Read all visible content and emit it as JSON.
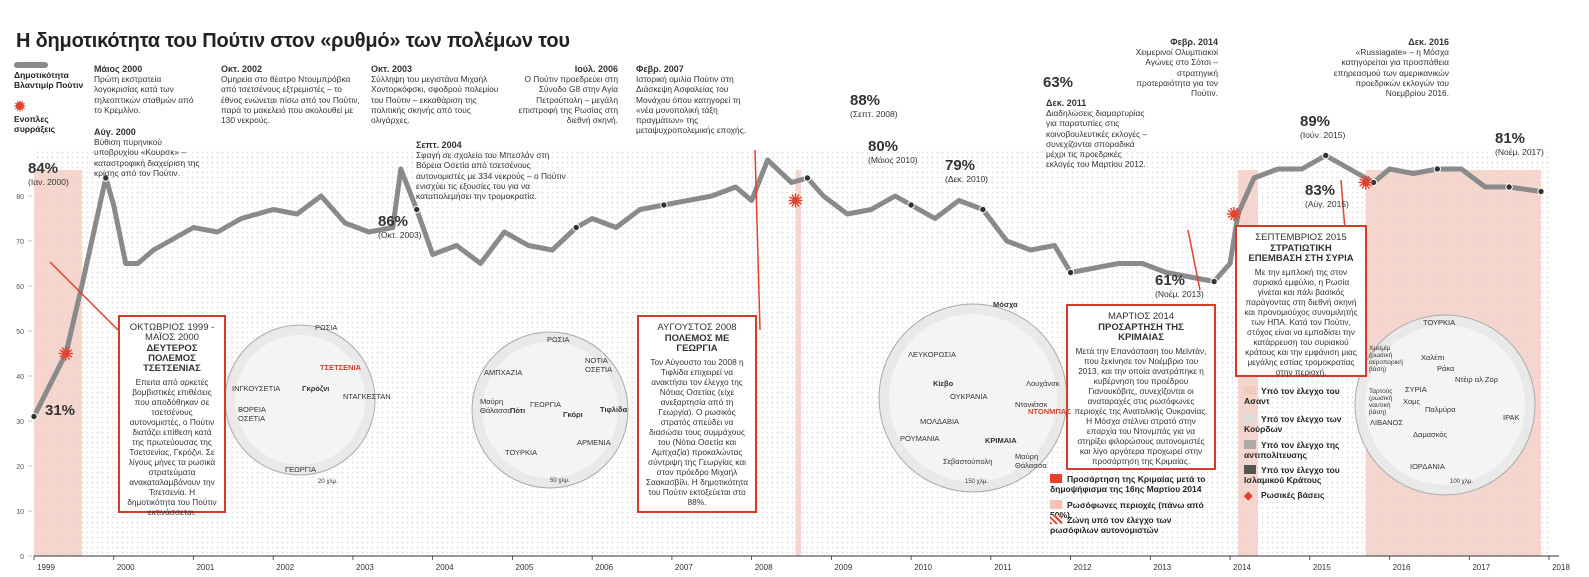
{
  "title": "Η δημοτικότητα του Πούτιν στον «ρυθμό» των πολέμων του",
  "legend": {
    "line_label": "Δημοτικότητα Βλαντιμίρ Πούτιν",
    "star_label": "Ενοπλες συρράξεις"
  },
  "colors": {
    "line": "#8a8a8a",
    "accent": "#e2412b",
    "war_band": "#f6d6cc",
    "grid_dot": "#d7d7d7"
  },
  "chart_data": {
    "type": "line",
    "title": "Η δημοτικότητα του Πούτιν στον «ρυθμό» των πολέμων του",
    "xlabel": "",
    "ylabel": "",
    "ylim": [
      0,
      90
    ],
    "xlim": [
      1999.0,
      2018.0
    ],
    "yticks": [
      0,
      10,
      20,
      30,
      40,
      50,
      60,
      70,
      80
    ],
    "years": [
      "1999",
      "2000",
      "2001",
      "2002",
      "2003",
      "2004",
      "2005",
      "2006",
      "2007",
      "2008",
      "2009",
      "2010",
      "2011",
      "2012",
      "2013",
      "2014",
      "2015",
      "2016",
      "2017",
      "2018"
    ],
    "series": [
      {
        "name": "Δημοτικότητα Βλαντιμίρ Πούτιν",
        "x": [
          1999.0,
          1999.4,
          1999.6,
          1999.75,
          1999.9,
          2000.0,
          2000.15,
          2000.3,
          2000.5,
          2000.7,
          2001.0,
          2001.3,
          2001.6,
          2002.0,
          2002.3,
          2002.6,
          2002.9,
          2003.2,
          2003.5,
          2003.6,
          2003.8,
          2004.0,
          2004.3,
          2004.6,
          2004.9,
          2005.2,
          2005.5,
          2005.8,
          2006.0,
          2006.3,
          2006.6,
          2006.9,
          2007.2,
          2007.5,
          2007.8,
          2008.0,
          2008.2,
          2008.5,
          2008.7,
          2008.9,
          2009.2,
          2009.5,
          2009.8,
          2010.0,
          2010.3,
          2010.6,
          2010.9,
          2011.2,
          2011.5,
          2011.8,
          2012.0,
          2012.3,
          2012.6,
          2012.9,
          2013.2,
          2013.5,
          2013.8,
          2014.0,
          2014.1,
          2014.3,
          2014.6,
          2014.9,
          2015.2,
          2015.5,
          2015.8,
          2016.0,
          2016.3,
          2016.6,
          2016.9,
          2017.2,
          2017.5,
          2017.9
        ],
        "values": [
          31,
          45,
          60,
          72,
          84,
          78,
          65,
          65,
          68,
          70,
          73,
          72,
          75,
          77,
          76,
          80,
          74,
          72,
          73,
          86,
          77,
          67,
          69,
          65,
          72,
          69,
          68,
          73,
          75,
          73,
          77,
          78,
          79,
          80,
          82,
          79,
          88,
          83,
          84,
          80,
          76,
          77,
          80,
          78,
          75,
          79,
          77,
          70,
          68,
          69,
          63,
          64,
          65,
          65,
          63,
          62,
          61,
          65,
          76,
          84,
          86,
          86,
          89,
          86,
          83,
          86,
          85,
          86,
          86,
          82,
          82,
          81
        ]
      }
    ],
    "peaks": [
      {
        "value": "84%",
        "date": "(Ιαν. 2000)"
      },
      {
        "value": "31%",
        "date": ""
      },
      {
        "value": "86%",
        "date": "(Οκτ. 2003)"
      },
      {
        "value": "88%",
        "date": "(Σεπτ. 2008)"
      },
      {
        "value": "80%",
        "date": "(Μάιος 2010)"
      },
      {
        "value": "79%",
        "date": "(Δεκ. 2010)"
      },
      {
        "value": "63%",
        "date": ""
      },
      {
        "value": "61%",
        "date": "(Νοέμ. 2013)"
      },
      {
        "value": "89%",
        "date": "(Ιούν. 2015)"
      },
      {
        "value": "83%",
        "date": "(Αύγ. 2015)"
      },
      {
        "value": "81%",
        "date": "(Νοέμ. 2017)"
      }
    ]
  },
  "annotations": [
    {
      "date": "Μάιος 2000",
      "text": "Πρώτη εκστρατεία λογοκρισίας κατά των τηλεοπτικών σταθμών από το Κρεμλίνο."
    },
    {
      "date": "Αύγ. 2000",
      "text": "Βύθιση πυρηνικού υποβρυχίου «Κουρσκ» – καταστροφική διαχείριση της κρίσης από τον Πούτιν."
    },
    {
      "date": "Οκτ. 2002",
      "text": "Ομηρεία στο θέατρο Ντουμπρόβκα από τσετσένους εξτρεμιστές – το έθνος ενώνεται πίσω από τον Πούτιν, παρά το μακελειό που ακολουθεί με 130 νεκρούς."
    },
    {
      "date": "Οκτ. 2003",
      "text": "Σύλληψη του μεγιστάνα Μιχαήλ Χοντορκόφσκι, σφοδρού πολεμίου του Πούτιν – εκκαθάριση της πολιτικής σκηνής από τους ολιγάρχες."
    },
    {
      "date": "Σεπτ. 2004",
      "text": "Σφαγή σε σχολείο του Μπεσλάν στη Βόρεια Οσετία από τσετσένους αυτονομιστές με 334 νεκρούς – ο Πούτιν ενισχύει τις εξουσίες του για να καταπολεμήσει την τρομοκρατία."
    },
    {
      "date": "Ιούλ. 2006",
      "text": "Ο Πούτιν προεδρεύει στη Σύνοδο G8 στην Αγία Πετρούπολη – μεγάλη επιστροφή της Ρωσίας στη διεθνή σκηνή."
    },
    {
      "date": "Φεβρ. 2007",
      "text": "Ιστορική ομιλία Πούτιν στη Διάσκεψη Ασφαλείας του Μονάχου όπου κατηγορεί τη «νέα μονοπολική τάξη πραγμάτων» της μεταψυχροπολεμικής εποχής."
    },
    {
      "date": "Δεκ. 2011",
      "text": "Διαδηλώσεις διαμαρτυρίας για παρατυπίες στις κοινοβουλευτικές εκλογές – συνεχίζονται σποραδικά μέχρι τις προεδρικές εκλογές του Μαρτίου 2012."
    },
    {
      "date": "Φεβρ. 2014",
      "text": "Χειμερινοί Ολυμπιακοί Αγώνες στο Σότσι – στρατηγική προτεραιότητα για τον Πούτιν."
    },
    {
      "date": "Δεκ. 2016",
      "text": "«Russiagate» – η Μόσχα κατηγορείται για προσπάθεια επηρεασμού των αμερικανικών προεδρικών εκλογών του Νοεμβρίου 2016."
    }
  ],
  "boxes": [
    {
      "date": "ΟΚΤΩΒΡΙΟΣ 1999 - ΜΑΪΟΣ 2000",
      "heading": "ΔΕΥΤΕΡΟΣ ΠΟΛΕΜΟΣ ΤΣΕΤΣΕΝΙΑΣ",
      "body": "Επειτα από αρκετές βομβιστικές επιθέσεις που αποδόθηκαν σε τσετσένους αυτονομιστές, ο Πούτιν διατάζει επίθεση κατά της πρωτεύουσας της Τσετσενίας, Γκρόζνι. Σε λίγους μήνες τα ρωσικά στρατεύματα ανακαταλαμβάνουν την Τσετσενία. Η δημοτικότητα του Πούτιν εκτινάσσεται."
    },
    {
      "date": "ΑΥΓΟΥΣΤΟΣ 2008",
      "heading": "ΠΟΛΕΜΟΣ ΜΕ ΓΕΩΡΓΙΑ",
      "body": "Τον Αύγουστο του 2008 η Τιφλίδα επιχειρεί να ανακτήσει τον έλεγχο της Νότιας Οσετίας (είχε ανεξαρτησία από τη Γεωργία). Ο ρωσικός στρατός σπεύδει να διασώσει τους συμμάχους του (Νότια Οσετία και Αμπχαζία) προκαλώντας σύντριψη της Γεωργίας και στον πρόεδρο Μιχαήλ Σαακασβίλι. Η δημοτικότητα του Πούτιν εκτοξεύεται στο 88%."
    },
    {
      "date": "ΜΑΡΤΙΟΣ 2014",
      "heading": "ΠΡΟΣΑΡΤΗΣΗ ΤΗΣ ΚΡΙΜΑΙΑΣ",
      "body": "Μετά την Επανάσταση του Μεϊντάν, που ξεκίνησε τον Νοέμβριο του 2013, και την οποία ανατράπηκε η κυβέρνηση του προέδρου Γιανουκόβιτς, συνεχίζονται οι αναταραχές στις ρωσόφωνες περιοχές της Ανατολικής Ουκρανίας. Η Μόσχα στέλνει στρατό στην επαρχία του Ντονμπάς για να στηρίξει φιλορώσους αυτονομιστές και λίγο αργότερα προχωρεί στην προσάρτηση της Κριμαίας."
    },
    {
      "date": "ΣΕΠΤΕΜΒΡΙΟΣ 2015",
      "heading": "ΣΤΡΑΤΙΩΤΙΚΗ ΕΠΕΜΒΑΣΗ ΣΤΗ ΣΥΡΙΑ",
      "body": "Με την εμπλοκή της στον συριακό εμφύλιο, η Ρωσία γίνεται και πάλι βασικός παράγοντας στη διεθνή σκηνή και προνομιούχος συνομιλητής των ΗΠΑ. Κατά τον Πούτιν, στόχος είναι να εμποδίσει την κατάρρευση του συριακού κράτους και την εμφάνιση μιας μεγάλης εστίας τρομοκρατίας στην περιοχή."
    }
  ],
  "maps": {
    "chechnya": [
      "ΡΩΣΙΑ",
      "ΤΣΕΤΣΕΝΙΑ",
      "Γκρόζνι",
      "ΙΝΓΚΟΥΣΕΤΙΑ",
      "ΒΟΡΕΙΑ ΟΣΕΤΙΑ",
      "ΝΤΑΓΚΕΣΤΑΝ",
      "ΓΕΩΡΓΙΑ",
      "20 χλμ."
    ],
    "georgia": [
      "ΡΩΣΙΑ",
      "ΑΜΠΧΑΖΙΑ",
      "ΝΟΤΙΑ ΟΣΕΤΙΑ",
      "Μαύρη Θάλασσα",
      "Πότι",
      "ΓΕΩΡΓΙΑ",
      "Γκόρι",
      "Τιφλίδα",
      "ΑΡΜΕΝΙΑ",
      "ΤΟΥΡΚΙΑ",
      "50 χλμ."
    ],
    "ukraine": [
      "Μόσχα",
      "ΛΕΥΚΟΡΩΣΙΑ",
      "Κίεβο",
      "ΟΥΚΡΑΝΙΑ",
      "Λουχάνσκ",
      "Ντονιέτσκ",
      "ΝΤΟΝΜΠΑΣ",
      "ΜΟΛΔΑΒΙΑ",
      "ΡΟΥΜΑΝΙΑ",
      "ΚΡΙΜΑΙΑ",
      "Σεβαστούπολη",
      "Μαύρη Θάλασσα",
      "150 χλμ."
    ],
    "syria": [
      "ΤΟΥΡΚΙΑ",
      "Χαλέπι",
      "Χμεϊμίμ (ρωσική αεροπορική βάση)",
      "Ράκα",
      "Ντέιρ αλ Ζορ",
      "ΣΥΡΙΑ",
      "Χομς",
      "Ταρτούς (ρωσική ναυτική βάση)",
      "Παλμύρα",
      "ΛΙΒΑΝΟΣ",
      "Δαμασκός",
      "ΙΡΑΚ",
      "ΙΟΡΔΑΝΙΑ",
      "100 χλμ."
    ]
  },
  "map_legends": {
    "ukraine": [
      "Προσάρτηση της Κριμαίας μετά το δημοψήφισμα της 16ης Μαρτίου 2014",
      "Ρωσόφωνες περιοχές (πάνω από 50%)",
      "Ζώνη υπό τον έλεγχο των ρωσόφιλων αυτονομιστών"
    ],
    "syria": [
      "Υπό τον έλεγχο του Ασαντ",
      "Υπό τον έλεγχο των Κούρδων",
      "Υπό τον έλεγχο της αντιπολίτευσης",
      "Υπό τον έλεγχο του Ισλαμικού Κράτους",
      "Ρωσικές βάσεις"
    ]
  }
}
